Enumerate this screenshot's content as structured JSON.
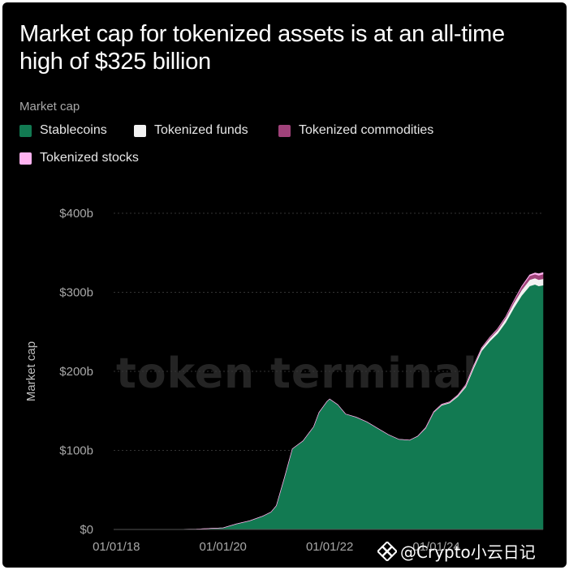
{
  "title": "Market cap for tokenized assets is at an all-time high of $325 billion",
  "legend": {
    "title": "Market cap",
    "items": [
      {
        "label": "Stablecoins",
        "color": "#127a52"
      },
      {
        "label": "Tokenized funds",
        "color": "#f2f2f2"
      },
      {
        "label": "Tokenized commodities",
        "color": "#a0427a"
      },
      {
        "label": "Tokenized stocks",
        "color": "#ffb3f0"
      }
    ]
  },
  "watermark": "token terminal_",
  "corner_watermark": "@Crypto小云日记",
  "chart_data": {
    "type": "area",
    "title": "Market cap for tokenized assets is at an all-time high of $325 billion",
    "ylabel": "Market cap",
    "xlabel": "",
    "ylim": [
      0,
      400
    ],
    "y_ticks": [
      "$0",
      "$100b",
      "$200b",
      "$300b",
      "$400b"
    ],
    "y_tick_values": [
      0,
      100,
      200,
      300,
      400
    ],
    "x_ticks": [
      "01/01/18",
      "01/01/20",
      "01/01/22",
      "01/01/24"
    ],
    "x_tick_values": [
      2018.0,
      2020.0,
      2022.0,
      2024.0
    ],
    "grid": true,
    "legend_position": "top-left",
    "x": [
      2018.0,
      2018.5,
      2019.0,
      2019.5,
      2020.0,
      2020.25,
      2020.5,
      2020.75,
      2020.9,
      2021.0,
      2021.15,
      2021.3,
      2021.5,
      2021.7,
      2021.8,
      2021.95,
      2022.0,
      2022.15,
      2022.3,
      2022.5,
      2022.7,
      2022.9,
      2023.1,
      2023.3,
      2023.5,
      2023.65,
      2023.8,
      2023.95,
      2024.1,
      2024.25,
      2024.4,
      2024.55,
      2024.7,
      2024.85,
      2025.0,
      2025.15,
      2025.3,
      2025.45,
      2025.6,
      2025.75,
      2025.85,
      2025.92,
      2026.0
    ],
    "series": [
      {
        "name": "Stablecoins",
        "color": "#127a52",
        "values": [
          0,
          0,
          0,
          0.5,
          2,
          7,
          11,
          17,
          22,
          30,
          65,
          102,
          112,
          130,
          148,
          162,
          165,
          158,
          146,
          142,
          136,
          128,
          120,
          114,
          113,
          118,
          128,
          148,
          157,
          160,
          168,
          180,
          204,
          226,
          238,
          248,
          262,
          280,
          296,
          308,
          310,
          308,
          309
        ]
      },
      {
        "name": "Tokenized funds",
        "color": "#f2f2f2",
        "values": [
          0,
          0,
          0,
          0,
          0,
          0,
          0,
          0,
          0,
          0,
          0,
          0,
          0,
          0,
          0,
          0,
          0,
          0,
          0,
          0,
          0,
          0,
          0,
          0,
          0,
          0,
          0.5,
          0.5,
          1,
          1,
          1.5,
          2,
          2.5,
          3,
          3.5,
          4,
          5,
          6,
          7,
          8,
          8,
          8,
          8
        ]
      },
      {
        "name": "Tokenized commodities",
        "color": "#a0427a",
        "values": [
          0,
          0,
          0,
          0,
          0,
          0,
          0,
          0,
          0,
          0,
          0,
          0,
          0,
          0,
          0,
          0,
          0,
          0,
          0,
          0,
          0,
          0,
          0,
          0,
          0,
          0,
          0.5,
          0.5,
          0.5,
          0.5,
          0.5,
          1,
          1,
          1,
          1.5,
          2,
          2,
          3,
          4,
          5,
          5,
          5.5,
          6
        ]
      },
      {
        "name": "Tokenized stocks",
        "color": "#ffb3f0",
        "values": [
          0,
          0,
          0,
          0,
          0,
          0,
          0,
          0,
          0,
          0,
          0,
          0,
          0,
          0,
          0,
          0,
          0,
          0,
          0,
          0,
          0,
          0,
          0,
          0,
          0,
          0,
          0,
          0,
          0,
          0,
          0,
          0,
          0,
          0,
          0,
          0,
          0,
          0,
          0.5,
          1,
          1.5,
          2,
          2
        ]
      }
    ]
  }
}
